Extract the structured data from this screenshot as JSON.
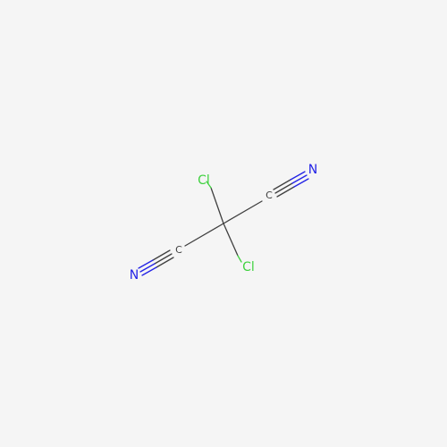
{
  "molecule": {
    "atoms": [
      {
        "id": "cl_top",
        "symbol": "Cl",
        "color": "#3fd13f"
      },
      {
        "id": "cl_bottom",
        "symbol": "Cl",
        "color": "#3fd13f"
      },
      {
        "id": "c_nitrile_upper",
        "symbol": "C",
        "color": "#404040"
      },
      {
        "id": "n_upper",
        "symbol": "N",
        "color": "#2323e6"
      },
      {
        "id": "c_nitrile_lower",
        "symbol": "C",
        "color": "#404040"
      },
      {
        "id": "n_lower",
        "symbol": "N",
        "color": "#2323e6"
      }
    ],
    "bond_color": "#404040",
    "background": "#f5f5f5"
  }
}
